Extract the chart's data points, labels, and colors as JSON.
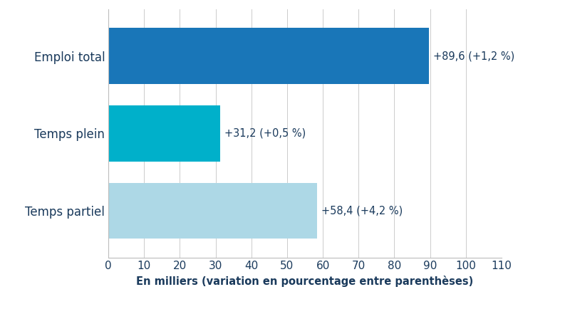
{
  "categories": [
    "Temps partiel",
    "Temps plein",
    "Emploi total"
  ],
  "values": [
    58.4,
    31.2,
    89.6
  ],
  "bar_colors": [
    "#add8e6",
    "#00b0ca",
    "#1976b8"
  ],
  "annotations": [
    "+58,4 (+4,2 %)",
    "+31,2 (+0,5 %)",
    "+89,6 (+1,2 %)"
  ],
  "xlabel": "En milliers (variation en pourcentage entre parenthèses)",
  "xlim": [
    0,
    110
  ],
  "xticks": [
    0,
    10,
    20,
    30,
    40,
    50,
    60,
    70,
    80,
    90,
    100,
    110
  ],
  "bar_height": 0.72,
  "background_color": "#ffffff",
  "text_color": "#1a3a5c",
  "label_fontsize": 12,
  "annot_fontsize": 10.5,
  "xlabel_fontsize": 10.5,
  "tick_fontsize": 11
}
